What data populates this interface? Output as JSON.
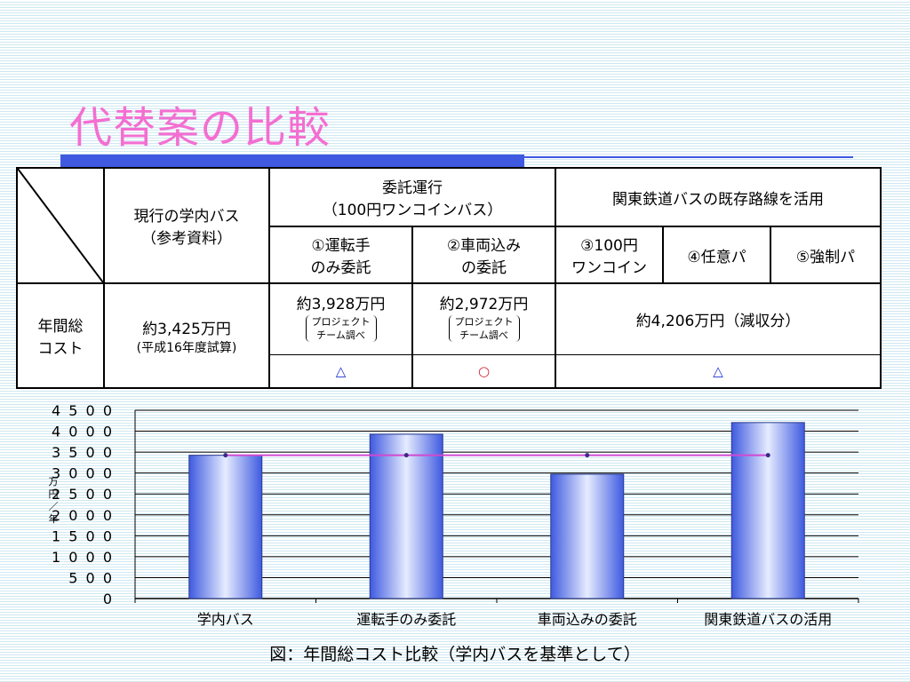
{
  "title": "代替案の比較",
  "table": {
    "header_current": [
      "現行の学内バス",
      "（参考資料）"
    ],
    "header_itaku": [
      "委託運行",
      "（100円ワンコインバス）"
    ],
    "header_kanto": "関東鉄道バスの既存路線を活用",
    "sub_1": [
      "①運転手",
      "のみ委託"
    ],
    "sub_2": [
      "②車両込み",
      "の委託"
    ],
    "sub_3": [
      "③100円",
      "ワンコイン"
    ],
    "sub_4": "④任意パ",
    "sub_5": "⑤強制パ",
    "row_label": [
      "年間総",
      "コスト"
    ],
    "cost_current": "約3,425万円",
    "cost_current_note": "(平成16年度試算)",
    "cost_1": "約3,928万円",
    "cost_1_note": [
      "プロジェクト",
      "チーム調べ"
    ],
    "cost_2": "約2,972万円",
    "cost_2_note": [
      "プロジェクト",
      "チーム調べ"
    ],
    "cost_kanto": "約4,206万円（減収分）",
    "mark_1": "△",
    "mark_2": "○",
    "mark_kanto": "△"
  },
  "caption": "図：年間総コスト比較（学内バスを基準として）",
  "chart_data": {
    "type": "bar",
    "categories": [
      "学内バス",
      "運転手のみ委託",
      "車両込みの委託",
      "関東鉄道バスの活用"
    ],
    "values": [
      3425,
      3928,
      2972,
      4206
    ],
    "baseline": [
      3425,
      3425,
      3425,
      3425
    ],
    "ylabel": "万円／年",
    "ylim": [
      0,
      4500
    ],
    "yticks": [
      0,
      500,
      1000,
      1500,
      2000,
      2500,
      3000,
      3500,
      4000,
      4500
    ],
    "grid": true,
    "colors": {
      "bar_edge": "#3f5ae0",
      "bar_light": "#e6ecff",
      "line": "#d04ad0",
      "marker": "#3a2a8a"
    }
  }
}
